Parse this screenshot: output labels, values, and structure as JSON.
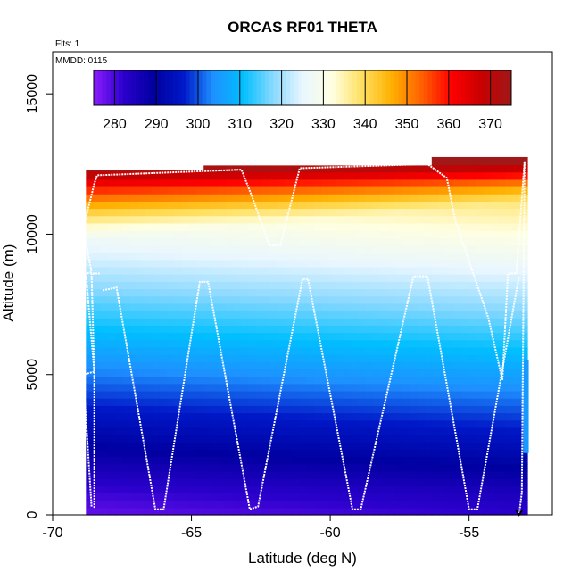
{
  "chart_data": {
    "type": "heatmap",
    "title": "ORCAS RF01 THETA",
    "subtitle_flights": "Flts: 1",
    "subtitle_date": "MMDD: 0115",
    "xlabel": "Latitude (deg N)",
    "ylabel": "Altitude (m)",
    "xlim": [
      -70,
      -52
    ],
    "ylim": [
      0,
      16500
    ],
    "x_ticks": [
      -70,
      -65,
      -60,
      -55
    ],
    "x_tick_labels": [
      "-70",
      "-65",
      "-60",
      "-55"
    ],
    "y_ticks": [
      0,
      5000,
      10000,
      15000
    ],
    "y_tick_labels": [
      "0",
      "5000",
      "10000",
      "15000"
    ],
    "colorbar": {
      "label_values": [
        280,
        290,
        300,
        310,
        320,
        330,
        340,
        350,
        360,
        370
      ],
      "tick_labels": [
        "280",
        "290",
        "300",
        "310",
        "320",
        "330",
        "340",
        "350",
        "360",
        "370"
      ],
      "range": [
        275,
        375
      ],
      "colors": [
        "#8c1cff",
        "#2b00cc",
        "#0000a0",
        "#0018c8",
        "#1e90ff",
        "#00bfff",
        "#87d8ff",
        "#e8f6ff",
        "#ffffe0",
        "#ffe060",
        "#ffb000",
        "#ff6000",
        "#ff0000",
        "#c80000",
        "#a01818"
      ]
    },
    "field": {
      "x_range": [
        -68.8,
        -52.9
      ],
      "y_range": [
        0,
        12500
      ],
      "top_altitude_by_lat": [
        [
          -68.8,
          12300
        ],
        [
          -64.6,
          12300
        ],
        [
          -64.6,
          12450
        ],
        [
          -56.3,
          12450
        ],
        [
          -56.3,
          12750
        ],
        [
          -53.3,
          12750
        ],
        [
          -53.3,
          0
        ]
      ],
      "profile_surface_theta": 281,
      "profile_lapse_k_per_km": 6.0,
      "stratosphere_theta_top": 372,
      "tropopause_alt_south": 9800,
      "tropopause_alt_north": 11200
    },
    "flight_track": [
      [
        -68.6,
        300
      ],
      [
        -68.9,
        5000
      ],
      [
        -68.5,
        5100
      ],
      [
        -68.8,
        8600
      ],
      [
        -68.6,
        8650
      ],
      [
        -68.9,
        10200
      ],
      [
        -68.5,
        11800
      ],
      [
        -68.4,
        12100
      ],
      [
        -63.2,
        12300
      ],
      [
        -62.8,
        11300
      ],
      [
        -62.2,
        9600
      ],
      [
        -61.8,
        9600
      ],
      [
        -61.1,
        12350
      ],
      [
        -56.5,
        12500
      ],
      [
        -55.8,
        12000
      ],
      [
        -55.5,
        10500
      ],
      [
        -54.3,
        7000
      ],
      [
        -53.8,
        4800
      ],
      [
        -53.6,
        8600
      ],
      [
        -53.3,
        8600
      ],
      [
        -53.0,
        12600
      ],
      [
        -53.1,
        800
      ],
      [
        -53.2,
        0
      ]
    ],
    "profiles": [
      [
        [
          -68.5,
          250
        ],
        [
          -68.5,
          5000
        ],
        [
          -68.6,
          8600
        ],
        [
          -68.3,
          8600
        ]
      ],
      [
        [
          -68.2,
          8000
        ],
        [
          -67.7,
          8100
        ],
        [
          -66.3,
          200
        ],
        [
          -66.0,
          200
        ],
        [
          -64.7,
          8300
        ],
        [
          -64.4,
          8300
        ],
        [
          -62.9,
          200
        ],
        [
          -62.6,
          300
        ],
        [
          -61.0,
          8400
        ],
        [
          -60.8,
          8400
        ],
        [
          -59.2,
          200
        ],
        [
          -58.9,
          200
        ],
        [
          -57.0,
          8500
        ],
        [
          -56.5,
          8500
        ],
        [
          -55.0,
          200
        ],
        [
          -54.7,
          200
        ],
        [
          -53.2,
          8500
        ]
      ]
    ]
  }
}
